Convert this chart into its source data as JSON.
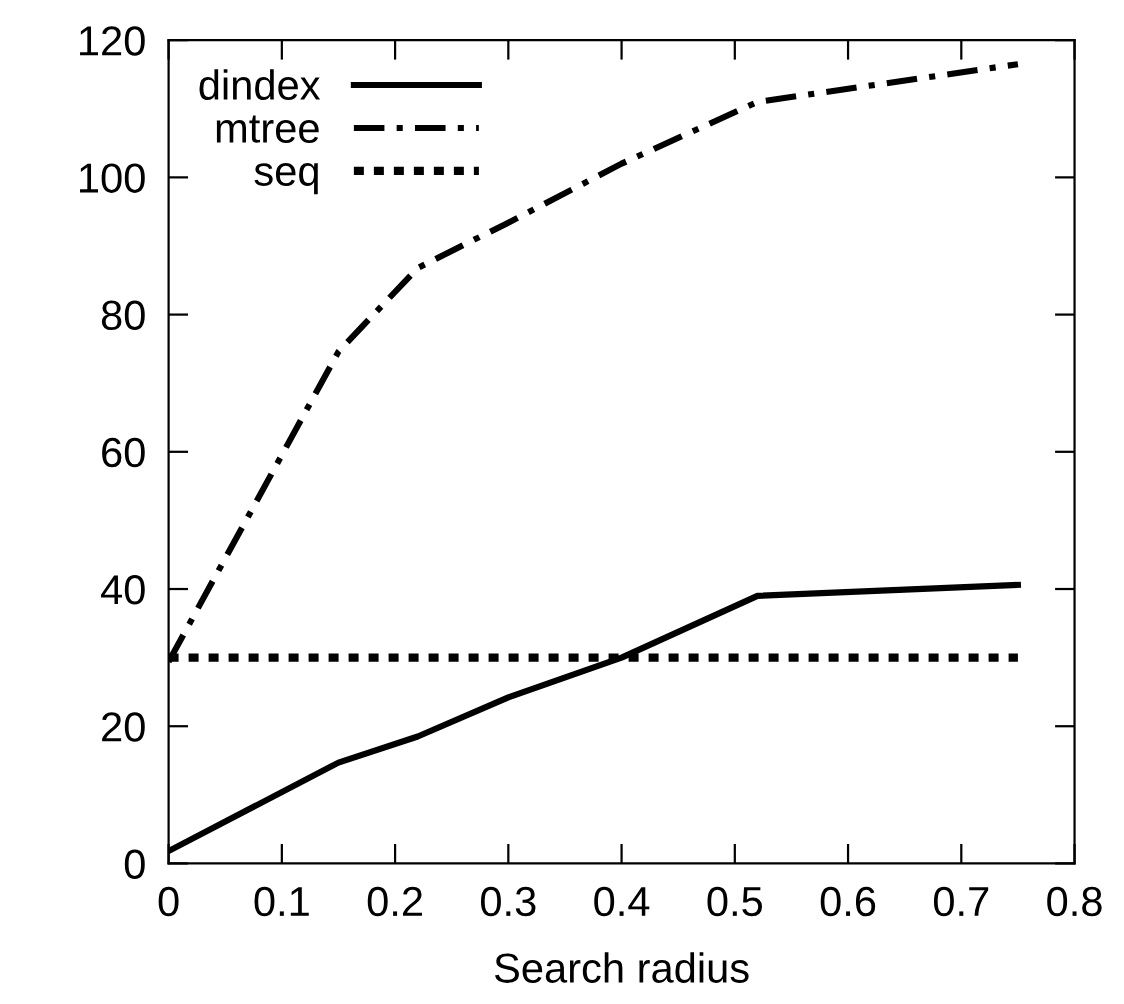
{
  "chart_data": {
    "type": "line",
    "xlabel": "Search radius",
    "x": [
      0,
      0.15,
      0.22,
      0.3,
      0.4,
      0.52,
      0.75
    ],
    "series": [
      {
        "name": "dindex",
        "color": "#000000",
        "line_style": "solid",
        "values": [
          1.8,
          14.7,
          18.5,
          24.2,
          30,
          39,
          40.6
        ]
      },
      {
        "name": "mtree",
        "color": "#000000",
        "line_style": "dashdot",
        "values": [
          29.4,
          74.6,
          86.8,
          93.4,
          102,
          111,
          116.5
        ]
      },
      {
        "name": "seq",
        "color": "#000000",
        "line_style": "dotted",
        "x": [
          0,
          0.75
        ],
        "values": [
          30,
          30
        ]
      }
    ],
    "xlim": [
      0,
      0.8
    ],
    "xticks": [
      0,
      0.1,
      0.2,
      0.3,
      0.4,
      0.5,
      0.6,
      0.7,
      0.8
    ],
    "ylim": [
      0,
      120
    ],
    "yticks": [
      0,
      20,
      40,
      60,
      80,
      100,
      120
    ],
    "grid": false,
    "legend": "top left",
    "marker": "none"
  }
}
